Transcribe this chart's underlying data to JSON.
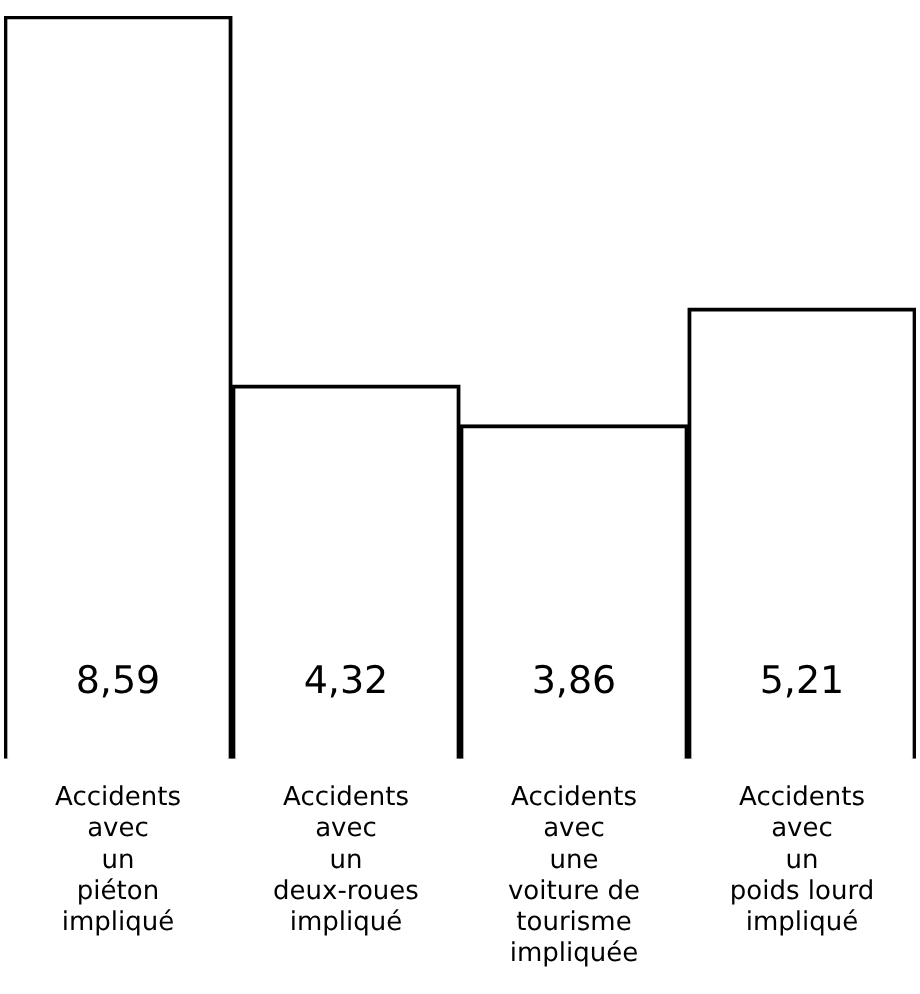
{
  "chart_data": {
    "type": "bar",
    "categories": [
      "Accidents\navec\nun\npiéton\nimpliqué",
      "Accidents\navec\nun\ndeux-roues\nimpliqué",
      "Accidents\navec\nune\nvoiture de\ntourisme\nimpliquée",
      "Accidents\navec\nun\npoids lourd\nimpliqué"
    ],
    "values": [
      8.59,
      4.32,
      3.86,
      5.21
    ],
    "value_labels": [
      "8,59",
      "4,32",
      "3,86",
      "5,21"
    ],
    "color": "#ffffff"
  }
}
